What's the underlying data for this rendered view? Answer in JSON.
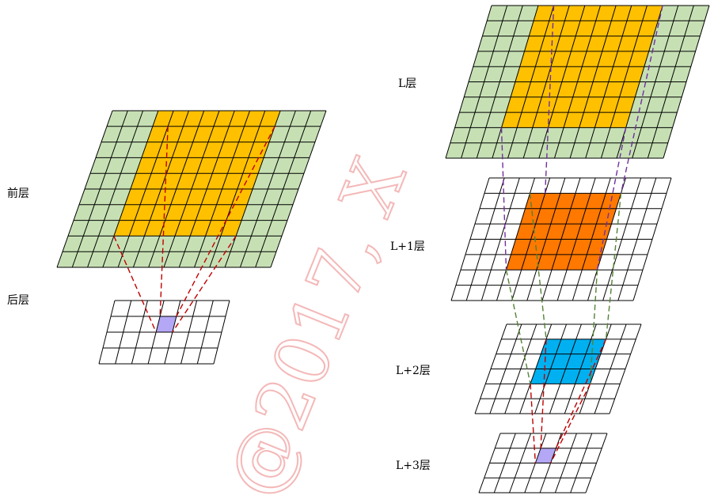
{
  "labels": {
    "front_layer": "前层",
    "back_layer": "后层",
    "layer_L": "L层",
    "layer_L1": "L+1层",
    "layer_L2": "L+2层",
    "layer_L3": "L+3层"
  },
  "watermark": "@2017, X",
  "colors": {
    "green": "#c6e0b4",
    "orange_yellow": "#ffc000",
    "orange": "#ff7800",
    "blue": "#00b0f0",
    "purple": "#b4a7f5",
    "red_dash": "#c00000",
    "purple_dash": "#7030a0",
    "green_dash": "#548235",
    "watermark": "#f4b8b8"
  }
}
